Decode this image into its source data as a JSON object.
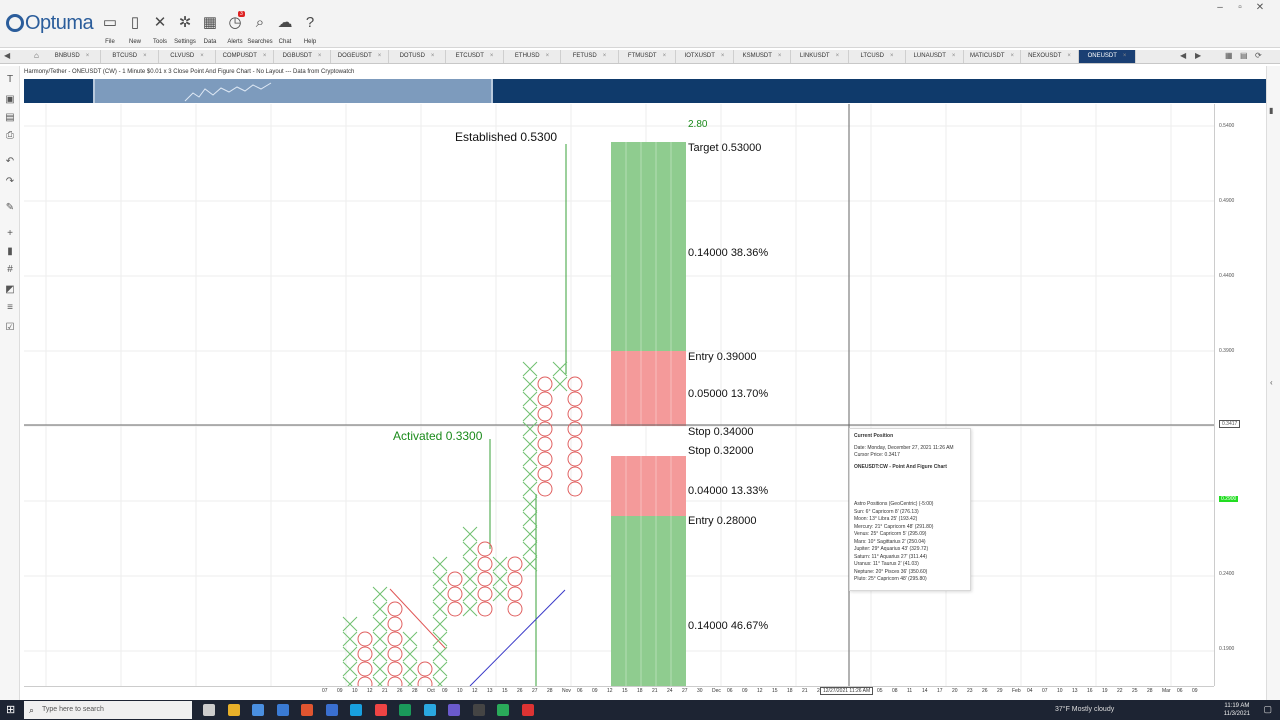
{
  "app": {
    "logo_text": "Optuma",
    "ribbon_buttons": [
      {
        "label": "File",
        "icon": "folder-icon"
      },
      {
        "label": "New",
        "icon": "new-document-icon"
      },
      {
        "label": "Tools",
        "icon": "tools-icon"
      },
      {
        "label": "Settings",
        "icon": "gear-icon"
      },
      {
        "label": "Data",
        "icon": "data-icon"
      },
      {
        "label": "Alerts",
        "icon": "alarm-clock-icon",
        "badge": "3"
      },
      {
        "label": "Searches",
        "icon": "magnifier-icon"
      },
      {
        "label": "Chat",
        "icon": "chat-icon"
      },
      {
        "label": "Help",
        "icon": "question-icon"
      }
    ],
    "window_controls": [
      "–",
      "▫",
      "✕"
    ]
  },
  "tabs": [
    "BNBUSD",
    "BTCUSD",
    "CLVUSD",
    "COMPUSDT",
    "DGBUSDT",
    "DOGEUSDT",
    "DOTUSD",
    "ETCUSDT",
    "ETHUSD",
    "FETUSD",
    "FTMUSDT",
    "IOTXUSDT",
    "KSMUSDT",
    "LINKUSDT",
    "LTCUSD",
    "LUNAUSDT",
    "MATICUSDT",
    "NEXOUSDT",
    "ONEUSDT"
  ],
  "active_tab": "ONEUSDT",
  "chart_header": "Harmony/Tether - ONEUSDT (CW) - 1 Minute $0.01 x 3 Close Point And Figure Chart - No Layout --- Data from Cryptowatch",
  "chart_labels": {
    "top_value": "2.80",
    "established": "Established 0.5300",
    "activated": "Activated 0.3300",
    "target": "Target  0.53000",
    "upper_gain": "0.14000  38.36%",
    "upper_entry": "Entry  0.39000",
    "upper_risk": "0.05000  13.70%",
    "stop_a": "Stop  0.34000",
    "stop_b": "Stop  0.32000",
    "lower_risk": "0.04000  13.33%",
    "lower_entry": "Entry  0.28000",
    "lower_gain": "0.14000  46.67%"
  },
  "chart_colors": {
    "green_zone": "#8fcc8f",
    "red_zone": "#f49a9a",
    "x_marks": "#6fc06f",
    "o_marks": "#e06060",
    "trend_red": "#e05555",
    "trend_blue": "#3a3ac8"
  },
  "price_axis": {
    "ticks": [
      "0.5400",
      "0.4900",
      "0.4400",
      "0.3900",
      "0.2900",
      "0.2400",
      "0.1900"
    ],
    "cursor_price": "0.3417",
    "current_price": "0.2900"
  },
  "date_axis": [
    "07",
    "09",
    "10",
    "12",
    "21",
    "26",
    "28",
    "Oct",
    "09",
    "10",
    "12",
    "13",
    "15",
    "26",
    "27",
    "28",
    "Nov",
    "06",
    "09",
    "12",
    "15",
    "18",
    "21",
    "24",
    "27",
    "30",
    "Dec",
    "06",
    "09",
    "12",
    "15",
    "18",
    "21",
    "24",
    "27",
    "Jan",
    "02",
    "05",
    "08",
    "11",
    "14",
    "17",
    "20",
    "23",
    "26",
    "29",
    "Feb",
    "04",
    "07",
    "10",
    "13",
    "16",
    "19",
    "22",
    "25",
    "28",
    "Mar",
    "06",
    "09"
  ],
  "cursor_date": "12/27/2021 11:26 AM",
  "info_panel": {
    "title": "Current Position",
    "date": "Date: Monday, December 27, 2021 11:26 AM",
    "cursor_price": "Cursor Price: 0.3417",
    "chart_name": "ONEUSDT:CW - Point And Figure Chart",
    "astro_title": "Astro Positions (GeoCentric) (-5:00)",
    "astro": [
      "Sun: 6° Capricorn 8' (276.13)",
      "Moon: 13° Libra 25' (193.42)",
      "Mercury: 21° Capricorn 48' (291.80)",
      "Venus: 25° Capricorn 5' (295.09)",
      "Mars: 10° Sagittarius 2' (250.04)",
      "Jupiter: 29° Aquarius 43' (329.72)",
      "Saturn: 11° Aquarius 27' (311.44)",
      "Uranus: 11° Taurus 2' (41.03)",
      "Neptune: 20° Pisces 36' (350.60)",
      "Pluto: 25° Capricorn 48' (295.80)"
    ]
  },
  "taskbar": {
    "search_placeholder": "Type here to search",
    "weather": "37°F  Mostly cloudy",
    "time": "11:19 AM",
    "date": "11/3/2021"
  }
}
